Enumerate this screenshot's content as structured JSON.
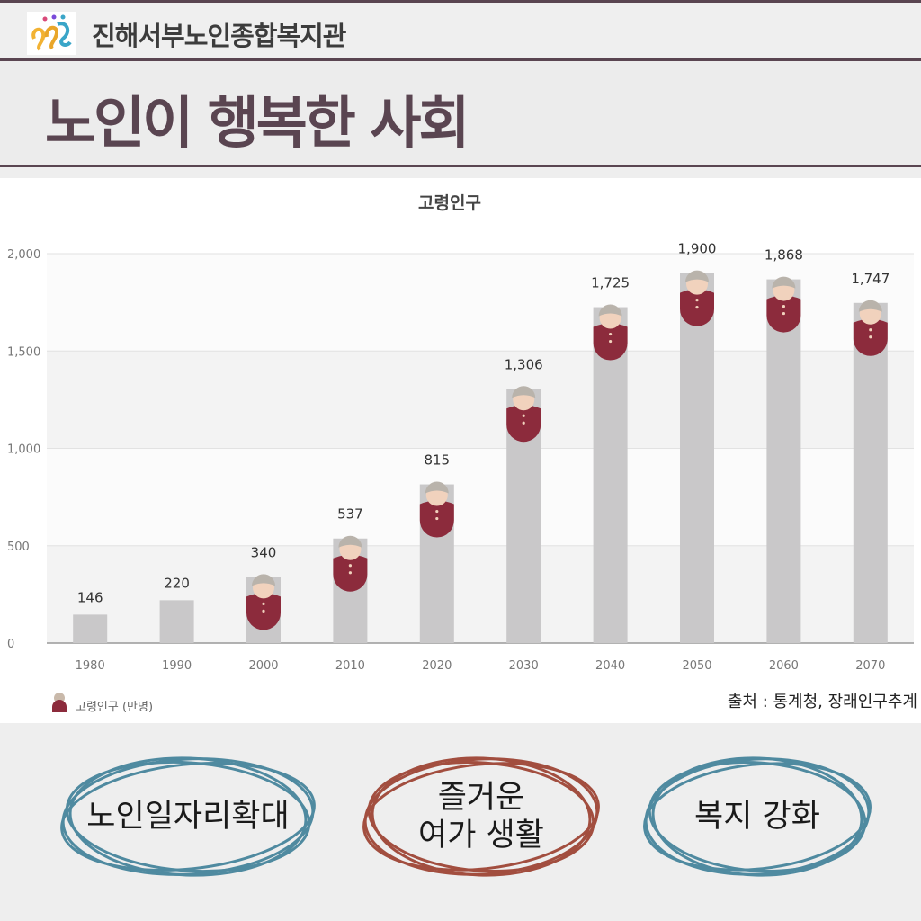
{
  "header": {
    "org_name": "진해서부노인종합복지관",
    "title": "노인이 행복한 사회"
  },
  "colors": {
    "accent": "#5a4551",
    "bar": "#c9c8c9",
    "figure": "#8c2b3c",
    "teal": "#4f8aa0",
    "rust": "#a24e3f"
  },
  "chart_data": {
    "type": "bar",
    "title": "고령인구",
    "categories": [
      "1980",
      "1990",
      "2000",
      "2010",
      "2020",
      "2030",
      "2040",
      "2050",
      "2060",
      "2070"
    ],
    "series": [
      {
        "name": "고령인구 (만명)",
        "values": [
          146,
          220,
          340,
          537,
          815,
          1306,
          1725,
          1900,
          1868,
          1747
        ]
      }
    ],
    "value_labels": [
      "146",
      "220",
      "340",
      "537",
      "815",
      "1,306",
      "1,725",
      "1,900",
      "1,868",
      "1,747"
    ],
    "yticks": [
      "0",
      "500",
      "1,000",
      "1,500",
      "2,000"
    ],
    "ylim": [
      0,
      2000
    ],
    "grid": true,
    "legend": "bottom-left",
    "source": "출처 : 통계청, 장래인구추계"
  },
  "actions": [
    {
      "label": "노인일자리확대",
      "color": "#4f8aa0"
    },
    {
      "label": "즐거운\n여가 생활",
      "color": "#a24e3f"
    },
    {
      "label": "복지 강화",
      "color": "#4f8aa0"
    }
  ]
}
